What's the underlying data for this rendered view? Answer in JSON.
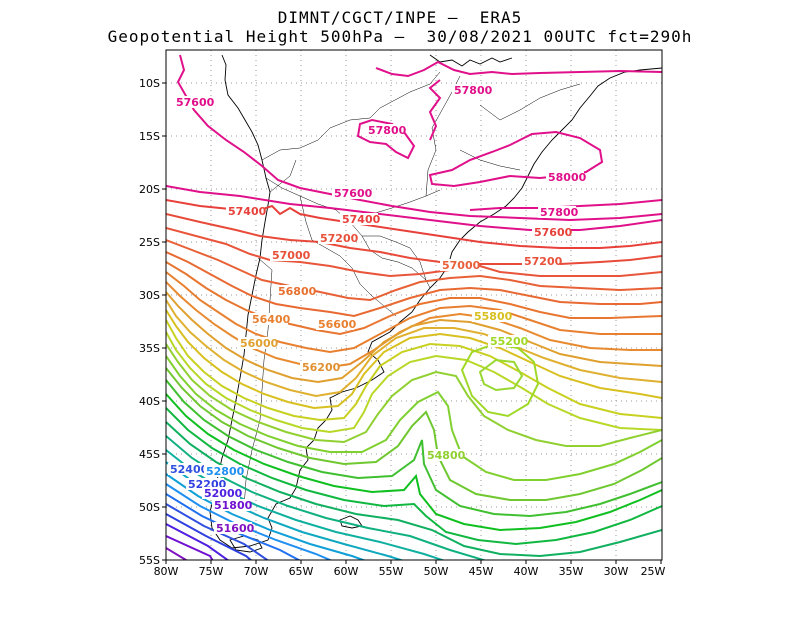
{
  "header": {
    "line1": "DIMNT/CGCT/INPE —  ERA5",
    "line2": "Geopotential Height 500hPa —  30/08/2021 00UTC fct=290h"
  },
  "map": {
    "lat_labels": [
      "10S",
      "15S",
      "20S",
      "25S",
      "30S",
      "35S",
      "40S",
      "45S",
      "50S",
      "55S"
    ],
    "lon_labels": [
      "80W",
      "75W",
      "70W",
      "65W",
      "60W",
      "55W",
      "50W",
      "45W",
      "40W",
      "35W",
      "30W",
      "25W"
    ],
    "contour_labels": [
      {
        "text": "57600",
        "color": "#e0108a"
      },
      {
        "text": "57800",
        "color": "#e0108a"
      },
      {
        "text": "57800",
        "color": "#e0108a"
      },
      {
        "text": "58000",
        "color": "#e0108a"
      },
      {
        "text": "57600",
        "color": "#e0108a"
      },
      {
        "text": "57800",
        "color": "#e0108a"
      },
      {
        "text": "57400",
        "color": "#e8403a"
      },
      {
        "text": "57400",
        "color": "#e8403a"
      },
      {
        "text": "57600",
        "color": "#e8403a"
      },
      {
        "text": "57200",
        "color": "#e8503a"
      },
      {
        "text": "57000",
        "color": "#e8503a"
      },
      {
        "text": "57000",
        "color": "#e8603a"
      },
      {
        "text": "57200",
        "color": "#e8503a"
      },
      {
        "text": "56800",
        "color": "#e87030"
      },
      {
        "text": "56400",
        "color": "#e88030"
      },
      {
        "text": "56600",
        "color": "#e88030"
      },
      {
        "text": "56000",
        "color": "#e0a030"
      },
      {
        "text": "56200",
        "color": "#e09030"
      },
      {
        "text": "55800",
        "color": "#d8c020"
      },
      {
        "text": "55200",
        "color": "#a0d828"
      },
      {
        "text": "54800",
        "color": "#90d030"
      },
      {
        "text": "52400",
        "color": "#3050e0"
      },
      {
        "text": "52800",
        "color": "#2090f0"
      },
      {
        "text": "52200",
        "color": "#3040e0"
      },
      {
        "text": "52000",
        "color": "#5020e0"
      },
      {
        "text": "51800",
        "color": "#7010d0"
      },
      {
        "text": "51600",
        "color": "#8010c0"
      }
    ]
  }
}
